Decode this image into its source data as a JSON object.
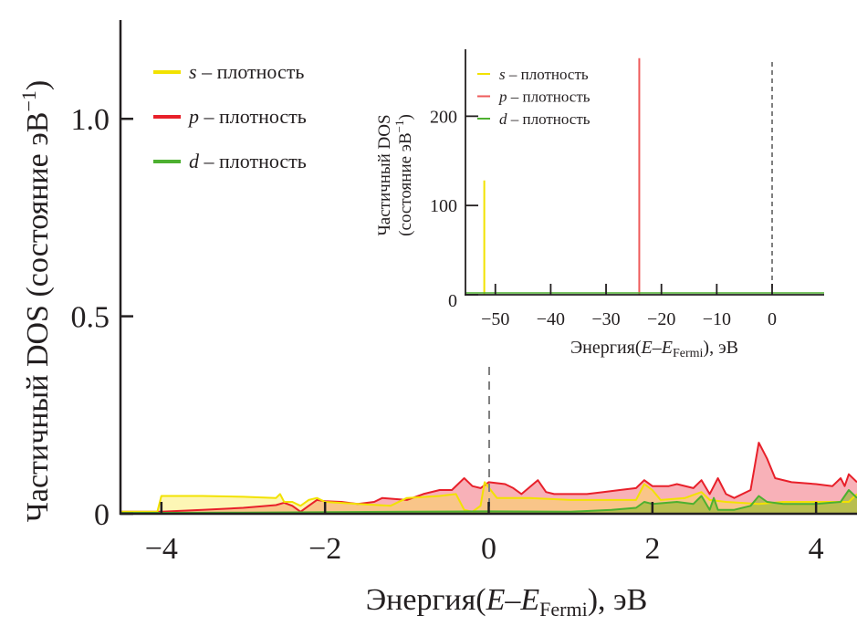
{
  "chart_data": [
    {
      "type": "area",
      "xlabel_main": "Энергия(",
      "xlabel_E": "E",
      "xlabel_dash": "–",
      "xlabel_E2": "E",
      "xlabel_sub": "Fermi",
      "xlabel_end": "), эВ",
      "ylabel_main": "Частичный DOS (состояние эВ",
      "ylabel_sup": "−1",
      "ylabel_end": ")",
      "xlim": [
        -4.5,
        4.5
      ],
      "ylim": [
        0,
        1.25
      ],
      "xticks": [
        -4,
        -2,
        0,
        2,
        4
      ],
      "xtick_labels": [
        "−4",
        "−2",
        "0",
        "2",
        "4"
      ],
      "yticks": [
        0,
        0.5,
        1.0
      ],
      "ytick_labels": [
        "0",
        "0.5",
        "1.0"
      ],
      "fermi_line_x": 0,
      "legend_position": "top-left",
      "series": [
        {
          "name": "p",
          "legend_italic": "p",
          "legend_text": " – плотность",
          "color": "#e8202a",
          "fill": "rgba(238,70,85,0.42)",
          "x": [
            -4.5,
            -4.0,
            -3.5,
            -3.0,
            -2.6,
            -2.5,
            -2.4,
            -2.3,
            -2.2,
            -2.1,
            -2.0,
            -1.8,
            -1.6,
            -1.4,
            -1.3,
            -1.0,
            -0.8,
            -0.6,
            -0.45,
            -0.3,
            -0.2,
            -0.1,
            0,
            0.2,
            0.3,
            0.4,
            0.6,
            0.7,
            0.8,
            1.0,
            1.2,
            1.4,
            1.6,
            1.8,
            1.9,
            2.0,
            2.2,
            2.3,
            2.5,
            2.6,
            2.7,
            2.8,
            2.9,
            3.0,
            3.2,
            3.3,
            3.4,
            3.5,
            3.7,
            4.0,
            4.2,
            4.3,
            4.35,
            4.4,
            4.5
          ],
          "y": [
            0.005,
            0.005,
            0.01,
            0.015,
            0.022,
            0.028,
            0.02,
            0.005,
            0.02,
            0.035,
            0.032,
            0.03,
            0.025,
            0.03,
            0.04,
            0.035,
            0.05,
            0.06,
            0.06,
            0.09,
            0.07,
            0.065,
            0.08,
            0.075,
            0.065,
            0.05,
            0.085,
            0.055,
            0.05,
            0.05,
            0.05,
            0.055,
            0.06,
            0.065,
            0.085,
            0.07,
            0.07,
            0.075,
            0.065,
            0.085,
            0.05,
            0.09,
            0.05,
            0.04,
            0.06,
            0.18,
            0.14,
            0.09,
            0.08,
            0.075,
            0.07,
            0.09,
            0.07,
            0.1,
            0.08
          ]
        },
        {
          "name": "s",
          "legend_italic": "s",
          "legend_text": " – плотность",
          "color": "#f2e200",
          "fill": "rgba(250,232,60,0.38)",
          "x": [
            -4.5,
            -4.05,
            -4.0,
            -3.5,
            -3.0,
            -2.6,
            -2.55,
            -2.5,
            -2.4,
            -2.3,
            -2.2,
            -2.1,
            -2.0,
            -1.6,
            -1.2,
            -1.0,
            -0.6,
            -0.4,
            -0.3,
            -0.2,
            -0.1,
            -0.05,
            0.1,
            0.3,
            0.5,
            1.0,
            1.5,
            1.8,
            1.9,
            2.0,
            2.1,
            2.4,
            2.6,
            2.7,
            2.9,
            3.3,
            3.6,
            4.4,
            4.5
          ],
          "y": [
            0.005,
            0.005,
            0.045,
            0.045,
            0.043,
            0.04,
            0.05,
            0.03,
            0.03,
            0.02,
            0.035,
            0.04,
            0.03,
            0.025,
            0.02,
            0.04,
            0.045,
            0.05,
            0.01,
            0.005,
            0.02,
            0.08,
            0.04,
            0.04,
            0.04,
            0.035,
            0.035,
            0.035,
            0.075,
            0.06,
            0.035,
            0.04,
            0.055,
            0.035,
            0.03,
            0.025,
            0.03,
            0.03,
            0.05
          ]
        },
        {
          "name": "d",
          "legend_italic": "d",
          "legend_text": " – плотность",
          "color": "#4db030",
          "fill": "rgba(140,185,40,0.6)",
          "x": [
            -4.5,
            -3.0,
            -1.0,
            0,
            1.0,
            1.5,
            1.8,
            1.9,
            2.0,
            2.3,
            2.5,
            2.6,
            2.7,
            2.75,
            2.8,
            3.0,
            3.2,
            3.3,
            3.4,
            3.6,
            4.0,
            4.3,
            4.4,
            4.5
          ],
          "y": [
            0.002,
            0.003,
            0.005,
            0.006,
            0.005,
            0.01,
            0.015,
            0.03,
            0.025,
            0.03,
            0.025,
            0.045,
            0.01,
            0.04,
            0.01,
            0.01,
            0.02,
            0.045,
            0.03,
            0.025,
            0.025,
            0.03,
            0.06,
            0.04
          ]
        }
      ]
    },
    {
      "type": "line",
      "inset": true,
      "xlabel_main": "Энергия(",
      "xlabel_E": "E",
      "xlabel_dash": "–",
      "xlabel_E2": "E",
      "xlabel_sub": "Fermi",
      "xlabel_end": "), эВ",
      "ylabel_line1": "Частичный DOS",
      "ylabel_line2": "(состояние эВ",
      "ylabel_sup": "−1",
      "ylabel_end": ")",
      "xlim": [
        -55.4,
        9.4
      ],
      "ylim": [
        0,
        275
      ],
      "xticks": [
        -50,
        -40,
        -30,
        -20,
        -10,
        0
      ],
      "xtick_labels": [
        "−50",
        "−40",
        "−30",
        "−20",
        "−10",
        "0"
      ],
      "yticks": [
        0,
        100,
        200
      ],
      "ytick_labels": [
        "0",
        "100",
        "200"
      ],
      "fermi_line_x": 0,
      "legend_position": "top-left",
      "series": [
        {
          "name": "s",
          "legend_italic": "s",
          "legend_text": " – плотность",
          "color": "#f2e200",
          "spike_x": -52,
          "spike_y": 128
        },
        {
          "name": "p",
          "legend_italic": "p",
          "legend_text": " – плотность",
          "color": "#ee5a5a",
          "spike_x": -24,
          "spike_y": 265
        },
        {
          "name": "d",
          "legend_italic": "d",
          "legend_text": " – плотность",
          "color": "#4db030",
          "spike_x": null,
          "spike_y": 2
        }
      ]
    }
  ]
}
